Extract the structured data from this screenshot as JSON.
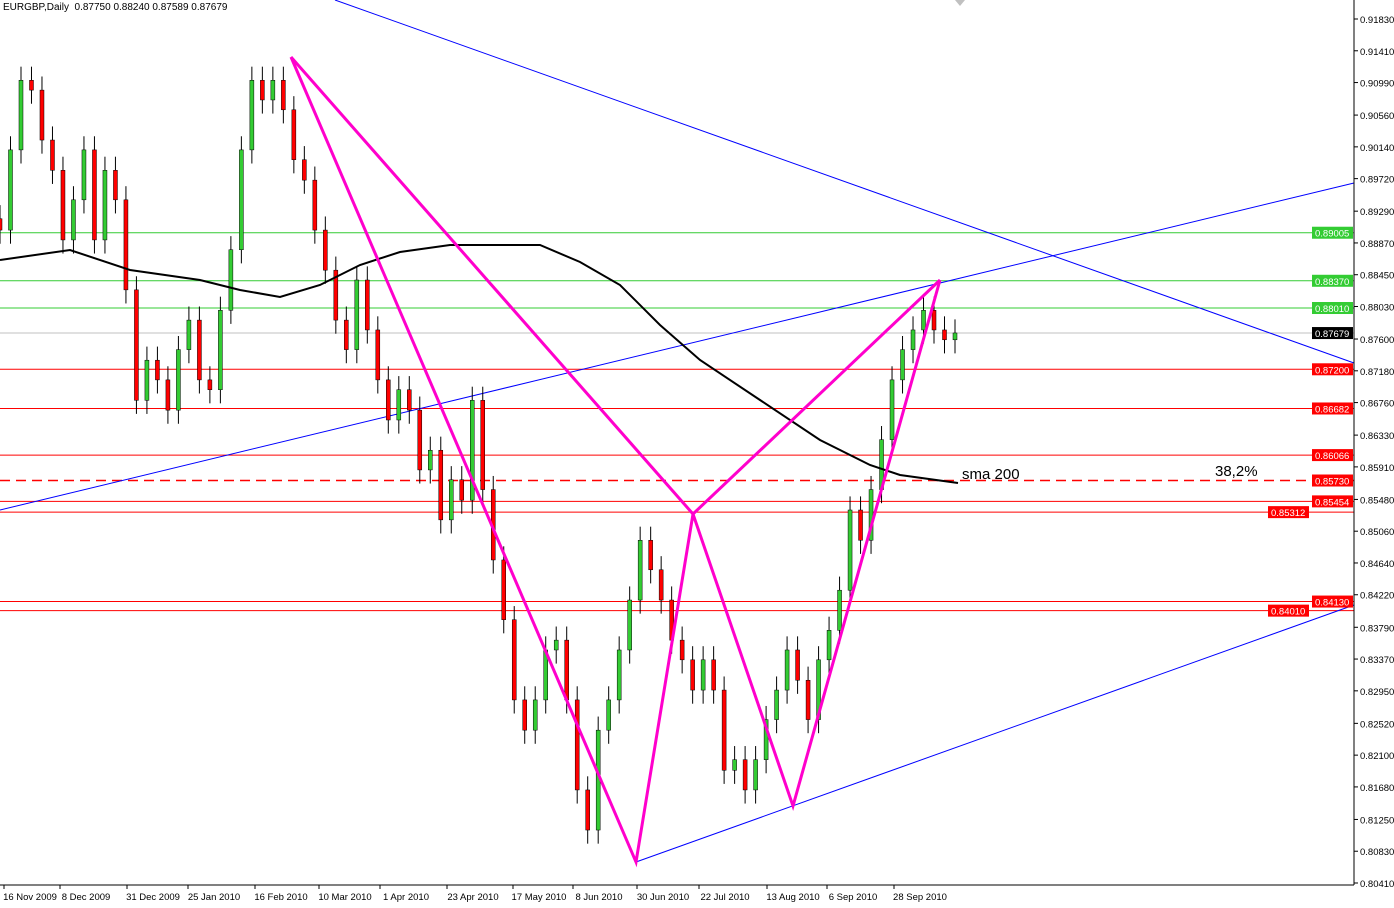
{
  "header": {
    "symbol": "EURGBP,Daily",
    "ohlc": "0.87750 0.88240 0.87589 0.87679"
  },
  "chart_data": {
    "type": "candlestick",
    "title": "EURGBP,Daily",
    "ylim": [
      0.8041,
      0.9183
    ],
    "y_ticks": [
      "0.91830",
      "0.91410",
      "0.90990",
      "0.90560",
      "0.90140",
      "0.89720",
      "0.89290",
      "0.88870",
      "0.88450",
      "0.88030",
      "0.87600",
      "0.87180",
      "0.86760",
      "0.86330",
      "0.85910",
      "0.85480",
      "0.85060",
      "0.84640",
      "0.84220",
      "0.83790",
      "0.83370",
      "0.82950",
      "0.82520",
      "0.82100",
      "0.81680",
      "0.81250",
      "0.80830",
      "0.80410"
    ],
    "x_ticks": [
      "16 Nov 2009",
      "8 Dec 2009",
      "31 Dec 2009",
      "25 Jan 2010",
      "16 Feb 2010",
      "10 Mar 2010",
      "1 Apr 2010",
      "23 Apr 2010",
      "17 May 2010",
      "8 Jun 2010",
      "30 Jun 2010",
      "22 Jul 2010",
      "13 Aug 2010",
      "6 Sep 2010",
      "28 Sep 2010"
    ],
    "closes": [
      0.8904,
      0.901,
      0.9102,
      0.9089,
      0.9023,
      0.8983,
      0.8891,
      0.8944,
      0.901,
      0.8891,
      0.8983,
      0.8944,
      0.8825,
      0.8679,
      0.8732,
      0.8706,
      0.8666,
      0.8746,
      0.8785,
      0.8706,
      0.8693,
      0.8798,
      0.8878,
      0.901,
      0.9102,
      0.9076,
      0.9102,
      0.9063,
      0.8997,
      0.897,
      0.8904,
      0.8851,
      0.8785,
      0.8746,
      0.8838,
      0.8772,
      0.8706,
      0.8653,
      0.8693,
      0.8666,
      0.8587,
      0.8613,
      0.8521,
      0.8574,
      0.8547,
      0.8679,
      0.8561,
      0.8468,
      0.8389,
      0.8283,
      0.8243,
      0.8283,
      0.8349,
      0.8362,
      0.8283,
      0.8164,
      0.8111,
      0.8243,
      0.8283,
      0.8349,
      0.8415,
      0.8494,
      0.8455,
      0.8415,
      0.8362,
      0.8336,
      0.8296,
      0.8336,
      0.8296,
      0.819,
      0.8204,
      0.8164,
      0.8204,
      0.8257,
      0.8296,
      0.8349,
      0.8309,
      0.8257,
      0.8336,
      0.8375,
      0.8428,
      0.8534,
      0.8494,
      0.8561,
      0.8627,
      0.8706,
      0.8746,
      0.8772,
      0.8798,
      0.8772,
      0.8759,
      0.8768
    ],
    "sma_label": "sma 200",
    "fib_label": "38,2%",
    "levels": [
      {
        "price": "0.89005",
        "color": "#33cc33",
        "style": "solid"
      },
      {
        "price": "0.88370",
        "color": "#33cc33",
        "style": "solid"
      },
      {
        "price": "0.88010",
        "color": "#33cc33",
        "style": "solid"
      },
      {
        "price": "0.87679",
        "color": "#000000",
        "style": "current"
      },
      {
        "price": "0.87200",
        "color": "#ff0000",
        "style": "solid"
      },
      {
        "price": "0.86682",
        "color": "#ff0000",
        "style": "solid"
      },
      {
        "price": "0.86066",
        "color": "#ff0000",
        "style": "solid"
      },
      {
        "price": "0.85730",
        "color": "#ff0000",
        "style": "dashed"
      },
      {
        "price": "0.85454",
        "color": "#ff0000",
        "style": "solid"
      },
      {
        "price": "0.85312",
        "color": "#ff0000",
        "style": "solid"
      },
      {
        "price": "0.84130",
        "color": "#ff0000",
        "style": "solid"
      },
      {
        "price": "0.84010",
        "color": "#ff0000",
        "style": "solid"
      }
    ],
    "colors": {
      "bull": "#33cc33",
      "bear": "#ff0000",
      "trendline": "#0000ff",
      "pattern": "#ff00cc",
      "sma": "#000000"
    }
  }
}
